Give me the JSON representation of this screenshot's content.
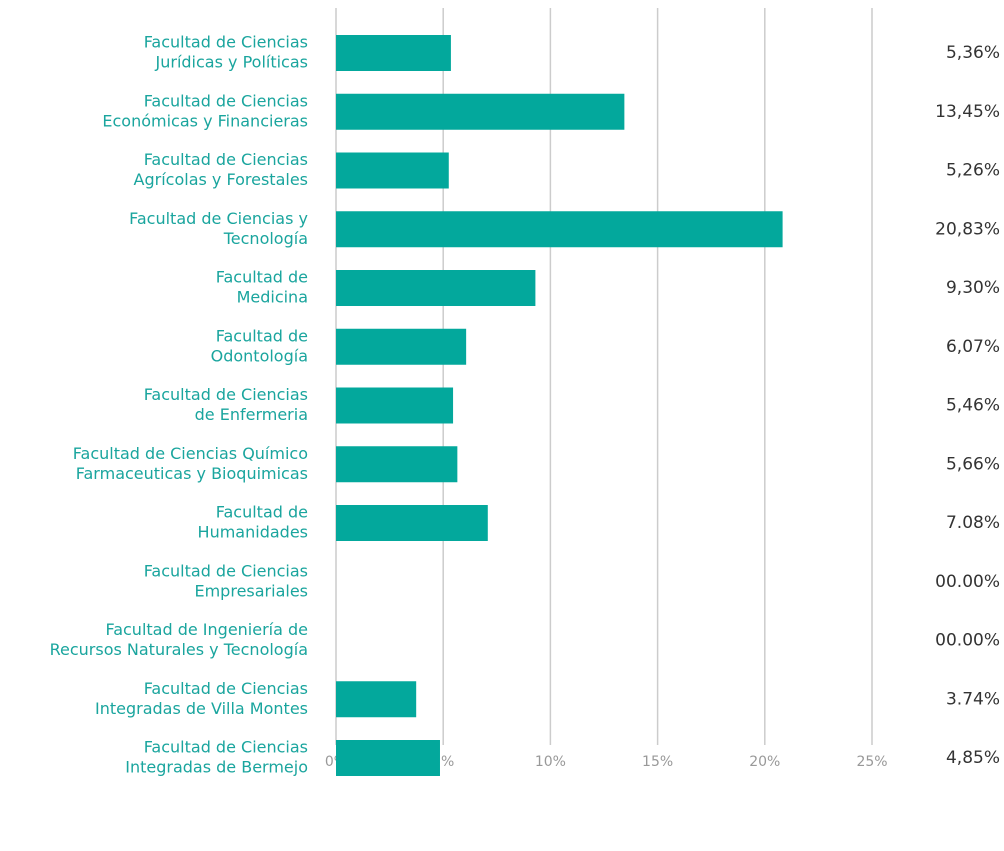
{
  "chart_data": {
    "type": "bar",
    "orientation": "horizontal",
    "categories": [
      [
        "Facultad de Ciencias",
        "Jurídicas y Políticas"
      ],
      [
        "Facultad de Ciencias",
        "Económicas y Financieras"
      ],
      [
        "Facultad de Ciencias",
        "Agrícolas y Forestales"
      ],
      [
        "Facultad de Ciencias y",
        "Tecnología"
      ],
      [
        "Facultad de",
        "Medicina"
      ],
      [
        "Facultad de",
        "Odontología"
      ],
      [
        "Facultad de Ciencias",
        "de Enfermeria"
      ],
      [
        "Facultad de Ciencias Químico",
        "Farmaceuticas y Bioquimicas"
      ],
      [
        "Facultad de",
        "Humanidades"
      ],
      [
        "Facultad de Ciencias",
        "Empresariales"
      ],
      [
        "Facultad de Ingeniería de",
        "Recursos Naturales y Tecnología"
      ],
      [
        "Facultad de Ciencias",
        "Integradas de Villa Montes"
      ],
      [
        "Facultad de Ciencias",
        "Integradas de Bermejo"
      ]
    ],
    "values": [
      5.36,
      13.45,
      5.26,
      20.83,
      9.3,
      6.07,
      5.46,
      5.66,
      7.08,
      0,
      0,
      3.74,
      4.85
    ],
    "value_labels": [
      "5,36%",
      "13,45%",
      "5,26%",
      "20,83%",
      "9,30%",
      "6,07%",
      "5,46%",
      "5,66%",
      "7.08%",
      "00.00%",
      "00.00%",
      "3.74%",
      "4,85%"
    ],
    "color": "#03a89c",
    "xlim": [
      0,
      25
    ],
    "xticks": [
      {
        "value": 0,
        "label": "0%"
      },
      {
        "value": 5,
        "label": "5%"
      },
      {
        "value": 10,
        "label": "10%"
      },
      {
        "value": 15,
        "label": "15%"
      },
      {
        "value": 20,
        "label": "20%"
      },
      {
        "value": 25,
        "label": "25%"
      }
    ],
    "grid": true
  }
}
